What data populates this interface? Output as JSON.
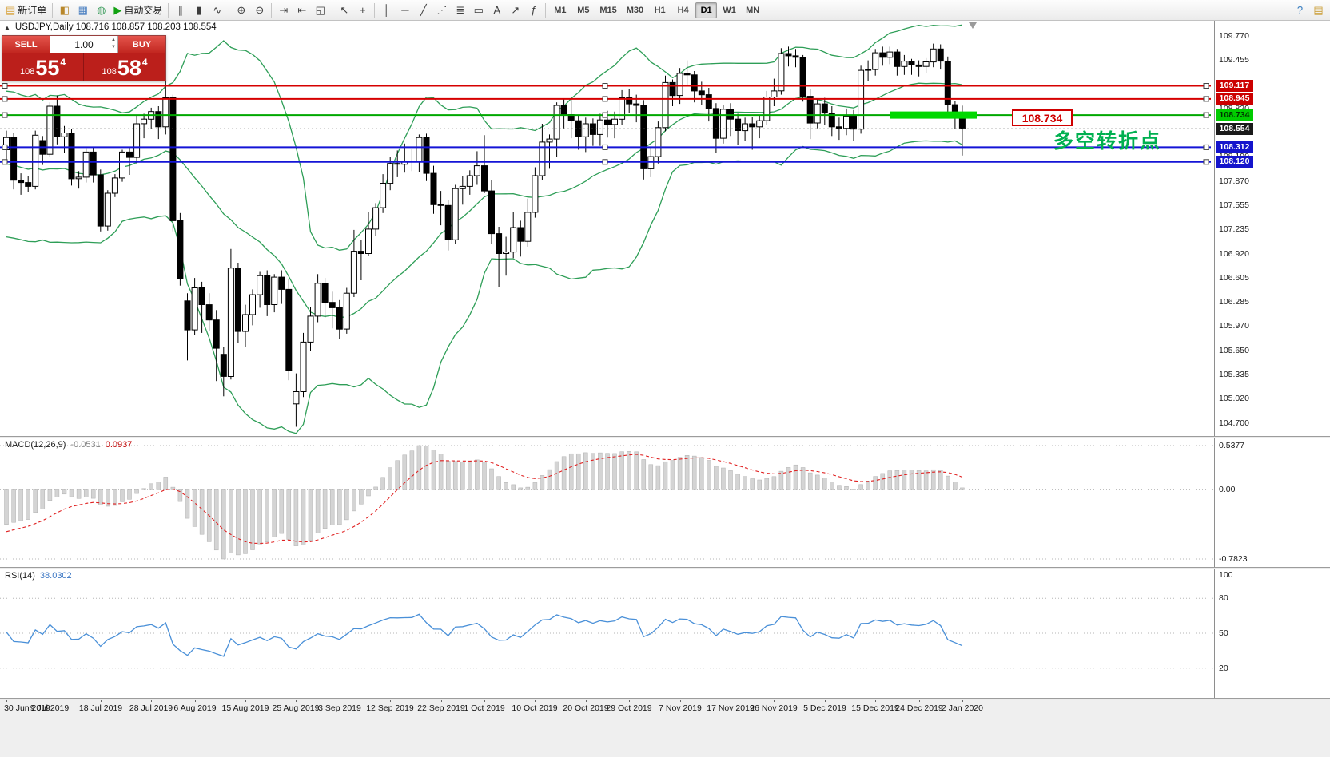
{
  "toolbar": {
    "active_timeframe": "D1",
    "items": [
      {
        "type": "btn",
        "name": "new-order",
        "label": "新订单",
        "glyph": "▤",
        "glyph_color": "#d8a23a"
      },
      {
        "type": "sep"
      },
      {
        "type": "btn",
        "name": "charts",
        "glyph": "◧",
        "glyph_color": "#b8872b"
      },
      {
        "type": "btn",
        "name": "market-watch",
        "glyph": "▦",
        "glyph_color": "#4a7fc1"
      },
      {
        "type": "btn",
        "name": "navigator",
        "glyph": "◍",
        "gly ph_color": "#3f9e5f",
        "glyph_color": "#3f9e5f"
      },
      {
        "type": "btn",
        "name": "autotrading",
        "label": "自动交易",
        "glyph": "▶",
        "glyph_color": "#12a112"
      },
      {
        "type": "sep"
      },
      {
        "type": "btn",
        "name": "bar-chart-mode",
        "glyph": "∥"
      },
      {
        "type": "btn",
        "name": "candlestick-mode",
        "glyph": "▮"
      },
      {
        "type": "btn",
        "name": "line-chart-mode",
        "glyph": "∿"
      },
      {
        "type": "sep"
      },
      {
        "type": "btn",
        "name": "zoom-in",
        "glyph": "⊕"
      },
      {
        "type": "btn",
        "name": "zoom-out",
        "glyph": "⊖"
      },
      {
        "type": "sep"
      },
      {
        "type": "btn",
        "name": "auto-scroll",
        "glyph": "⇥"
      },
      {
        "type": "btn",
        "name": "chart-shift",
        "glyph": "⇤"
      },
      {
        "type": "btn",
        "name": "tile-windows",
        "glyph": "◱"
      },
      {
        "type": "sep"
      },
      {
        "type": "btn",
        "name": "cursor",
        "glyph": "↖"
      },
      {
        "type": "btn",
        "name": "crosshair",
        "glyph": "+"
      },
      {
        "type": "sep"
      },
      {
        "type": "btn",
        "name": "vertical-line",
        "glyph": "│"
      },
      {
        "type": "btn",
        "name": "horizontal-line",
        "glyph": "─"
      },
      {
        "type": "btn",
        "name": "trendline",
        "glyph": "╱"
      },
      {
        "type": "btn",
        "name": "equidistant-channel",
        "glyph": "⋰"
      },
      {
        "type": "btn",
        "name": "fibonacci",
        "glyph": "≣"
      },
      {
        "type": "btn",
        "name": "shapes",
        "glyph": "▭"
      },
      {
        "type": "btn",
        "name": "text-label",
        "glyph": "A"
      },
      {
        "type": "btn",
        "name": "arrows",
        "glyph": "↗"
      },
      {
        "type": "btn",
        "name": "indicators",
        "glyph": "ƒ"
      },
      {
        "type": "sep"
      },
      {
        "type": "tf",
        "label": "M1"
      },
      {
        "type": "tf",
        "label": "M5"
      },
      {
        "type": "tf",
        "label": "M15"
      },
      {
        "type": "tf",
        "label": "M30"
      },
      {
        "type": "tf",
        "label": "H1"
      },
      {
        "type": "tf",
        "label": "H4"
      },
      {
        "type": "tf",
        "label": "D1"
      },
      {
        "type": "tf",
        "label": "W1"
      },
      {
        "type": "tf",
        "label": "MN"
      },
      {
        "type": "spacer"
      },
      {
        "type": "btn",
        "name": "help",
        "glyph": "?",
        "glyph_color": "#3a7fc1"
      },
      {
        "type": "btn",
        "name": "panels",
        "glyph": "▤",
        "glyph_color": "#c99a2e"
      }
    ]
  },
  "symbol_header": {
    "collapse": "▲",
    "text": "USDJPY,Daily 108.716 108.857 108.203 108.554"
  },
  "trade_panel": {
    "sell": "SELL",
    "buy": "BUY",
    "volume": "1.00",
    "bid": {
      "prefix": "108",
      "big": "55",
      "sup": "4"
    },
    "ask": {
      "prefix": "108",
      "big": "58",
      "sup": "4"
    }
  },
  "macd": {
    "name": "MACD(12,26,9)",
    "value1": "-0.0531",
    "value2": "0.0937",
    "scale": [
      "0.5377",
      "0.00",
      "-0.7823"
    ]
  },
  "rsi": {
    "name": "RSI(14)",
    "value": "38.0302",
    "scale": [
      "100",
      "80",
      "50",
      "20"
    ]
  },
  "annotations": {
    "price_callout": "108.734",
    "turning_point_note": "多空转折点"
  },
  "chart_data": {
    "type": "candlestick",
    "symbol": "USDJPY",
    "timeframe": "Daily",
    "last_ohlc": {
      "open": 108.716,
      "high": 108.857,
      "low": 108.203,
      "close": 108.554
    },
    "bid_line": 108.554,
    "styles": {
      "bollinger": "#2e9e57",
      "macd_hist": "#d4d4d4",
      "macd_signal": "#e02020",
      "rsi_line": "#4a90d8",
      "bull": "#ffffff",
      "bear": "#000000"
    },
    "hlines": [
      {
        "price": 109.117,
        "color": "#d60000"
      },
      {
        "price": 108.945,
        "color": "#d60000"
      },
      {
        "price": 108.734,
        "color": "#00a800"
      },
      {
        "price": 108.312,
        "color": "#1414d6"
      },
      {
        "price": 108.12,
        "color": "#1414d6"
      }
    ],
    "zone": {
      "start_index": 122,
      "end_index": 134,
      "price": 108.734,
      "color": "#00d800"
    },
    "axis_labels": [
      109.77,
      109.455,
      108.82,
      108.505,
      108.19,
      107.87,
      107.555,
      107.235,
      106.92,
      106.605,
      106.285,
      105.97,
      105.65,
      105.335,
      105.02,
      104.7
    ],
    "axis_boxes": [
      {
        "text": "109.117",
        "price": 109.117,
        "bg": "#cc0000",
        "fg": "#ffffff"
      },
      {
        "text": "108.945",
        "price": 108.945,
        "bg": "#cc0000",
        "fg": "#ffffff"
      },
      {
        "text": "108.734",
        "price": 108.734,
        "bg": "#00cc00",
        "fg": "#003300"
      },
      {
        "text": "108.554",
        "price": 108.554,
        "bg": "#1a1a1a",
        "fg": "#ffffff"
      },
      {
        "text": "108.312",
        "price": 108.312,
        "bg": "#1414cc",
        "fg": "#ffffff"
      },
      {
        "text": "108.120",
        "price": 108.12,
        "bg": "#1414cc",
        "fg": "#ffffff"
      }
    ],
    "date_labels": [
      [
        0,
        "30 Jun 2019"
      ],
      [
        6,
        "9 Jul 2019"
      ],
      [
        13,
        "18 Jul 2019"
      ],
      [
        20,
        "28 Jul 2019"
      ],
      [
        26,
        "6 Aug 2019"
      ],
      [
        33,
        "15 Aug 2019"
      ],
      [
        40,
        "25 Aug 2019"
      ],
      [
        46,
        "3 Sep 2019"
      ],
      [
        53,
        "12 Sep 2019"
      ],
      [
        60,
        "22 Sep 2019"
      ],
      [
        66,
        "1 Oct 2019"
      ],
      [
        73,
        "10 Oct 2019"
      ],
      [
        80,
        "20 Oct 2019"
      ],
      [
        86,
        "29 Oct 2019"
      ],
      [
        93,
        "7 Nov 2019"
      ],
      [
        100,
        "17 Nov 2019"
      ],
      [
        106,
        "26 Nov 2019"
      ],
      [
        113,
        "5 Dec 2019"
      ],
      [
        120,
        "15 Dec 2019"
      ],
      [
        126,
        "24 Dec 2019"
      ],
      [
        132,
        "2 Jan 2020"
      ]
    ],
    "prehistory_closes": [
      109.95,
      110.05,
      109.85,
      109.6,
      109.45,
      109.55,
      109.35,
      109.6,
      109.7,
      109.5,
      109.3,
      109.0,
      108.7,
      108.4,
      108.29,
      108.07,
      108.15,
      108.44,
      108.29,
      108.19,
      108.72,
      108.53,
      108.5,
      108.37,
      108.56,
      108.54,
      108.45,
      108.11,
      107.3,
      107.32,
      107.32,
      107.19,
      107.79,
      107.79,
      107.85
    ],
    "candles": [
      [
        108.28,
        108.53,
        108.1,
        108.44
      ],
      [
        108.44,
        108.5,
        107.76,
        107.88
      ],
      [
        107.88,
        107.97,
        107.69,
        107.85
      ],
      [
        107.85,
        107.94,
        107.72,
        107.8
      ],
      [
        107.8,
        108.53,
        107.76,
        108.47
      ],
      [
        108.4,
        108.46,
        108.08,
        108.22
      ],
      [
        108.22,
        108.9,
        108.18,
        108.85
      ],
      [
        108.85,
        108.99,
        108.35,
        108.45
      ],
      [
        108.45,
        108.59,
        108.24,
        108.5
      ],
      [
        108.5,
        108.55,
        107.81,
        107.9
      ],
      [
        107.9,
        108.0,
        107.77,
        107.92
      ],
      [
        107.92,
        108.3,
        107.85,
        108.25
      ],
      [
        108.25,
        108.32,
        107.85,
        107.95
      ],
      [
        107.95,
        108.02,
        107.21,
        107.28
      ],
      [
        107.28,
        107.75,
        107.22,
        107.71
      ],
      [
        107.71,
        107.96,
        107.66,
        107.91
      ],
      [
        107.91,
        108.28,
        107.86,
        108.25
      ],
      [
        108.25,
        108.32,
        107.95,
        108.18
      ],
      [
        108.18,
        108.73,
        108.1,
        108.62
      ],
      [
        108.62,
        108.75,
        108.43,
        108.68
      ],
      [
        108.68,
        108.83,
        108.55,
        108.78
      ],
      [
        108.78,
        108.85,
        108.42,
        108.58
      ],
      [
        108.58,
        109.31,
        108.48,
        108.96
      ],
      [
        108.96,
        109.0,
        107.21,
        107.35
      ],
      [
        107.35,
        107.45,
        106.5,
        106.59
      ],
      [
        106.3,
        106.4,
        105.52,
        105.92
      ],
      [
        105.92,
        106.6,
        105.85,
        106.47
      ],
      [
        106.47,
        106.55,
        105.88,
        106.25
      ],
      [
        106.25,
        106.4,
        105.91,
        106.05
      ],
      [
        106.05,
        106.18,
        105.25,
        105.68
      ],
      [
        105.6,
        105.7,
        105.05,
        105.31
      ],
      [
        105.31,
        106.98,
        105.27,
        106.73
      ],
      [
        106.73,
        106.8,
        105.75,
        105.9
      ],
      [
        105.9,
        106.25,
        105.7,
        106.12
      ],
      [
        106.12,
        106.45,
        105.98,
        106.38
      ],
      [
        106.38,
        106.68,
        106.21,
        106.63
      ],
      [
        106.63,
        106.7,
        106.1,
        106.25
      ],
      [
        106.25,
        106.65,
        106.15,
        106.61
      ],
      [
        106.61,
        106.7,
        106.26,
        106.45
      ],
      [
        106.45,
        106.58,
        105.26,
        105.39
      ],
      [
        104.95,
        105.35,
        104.65,
        105.11
      ],
      [
        105.11,
        105.88,
        105.04,
        105.76
      ],
      [
        105.76,
        106.22,
        105.64,
        106.1
      ],
      [
        106.1,
        106.65,
        106.02,
        106.53
      ],
      [
        106.53,
        106.6,
        106.08,
        106.28
      ],
      [
        106.28,
        106.42,
        105.94,
        106.21
      ],
      [
        106.21,
        106.31,
        105.8,
        105.93
      ],
      [
        105.93,
        106.47,
        105.87,
        106.4
      ],
      [
        106.4,
        107.23,
        106.35,
        106.95
      ],
      [
        106.95,
        107.1,
        106.57,
        106.92
      ],
      [
        106.92,
        107.46,
        106.89,
        107.24
      ],
      [
        107.24,
        107.58,
        107.15,
        107.52
      ],
      [
        107.52,
        107.96,
        107.45,
        107.84
      ],
      [
        107.84,
        108.18,
        107.75,
        108.1
      ],
      [
        108.1,
        108.27,
        107.92,
        108.09
      ],
      [
        108.09,
        108.36,
        107.98,
        108.12
      ],
      [
        108.12,
        108.29,
        108.0,
        108.13
      ],
      [
        108.13,
        108.48,
        107.99,
        108.44
      ],
      [
        108.44,
        108.49,
        107.87,
        107.97
      ],
      [
        107.97,
        108.07,
        107.44,
        107.56
      ],
      [
        107.56,
        107.74,
        107.29,
        107.55
      ],
      [
        107.55,
        107.62,
        106.96,
        107.1
      ],
      [
        107.1,
        107.82,
        107.05,
        107.77
      ],
      [
        107.77,
        107.93,
        107.56,
        107.8
      ],
      [
        107.8,
        108.01,
        107.69,
        107.94
      ],
      [
        107.94,
        108.26,
        107.82,
        108.07
      ],
      [
        108.07,
        108.47,
        107.71,
        107.74
      ],
      [
        107.74,
        107.88,
        107.05,
        107.18
      ],
      [
        107.18,
        107.27,
        106.48,
        106.92
      ],
      [
        106.92,
        107.14,
        106.63,
        106.94
      ],
      [
        106.94,
        107.46,
        106.86,
        107.26
      ],
      [
        107.26,
        107.35,
        106.88,
        107.08
      ],
      [
        107.08,
        107.64,
        107.01,
        107.46
      ],
      [
        107.46,
        108.05,
        107.39,
        107.94
      ],
      [
        107.94,
        108.62,
        107.88,
        108.38
      ],
      [
        108.38,
        108.48,
        108.03,
        108.42
      ],
      [
        108.42,
        108.9,
        108.19,
        108.86
      ],
      [
        108.86,
        108.94,
        108.56,
        108.74
      ],
      [
        108.74,
        108.94,
        108.43,
        108.66
      ],
      [
        108.66,
        108.74,
        108.28,
        108.45
      ],
      [
        108.45,
        108.7,
        108.25,
        108.62
      ],
      [
        108.62,
        108.69,
        108.33,
        108.48
      ],
      [
        108.48,
        108.75,
        108.33,
        108.67
      ],
      [
        108.67,
        108.79,
        108.44,
        108.61
      ],
      [
        108.61,
        108.78,
        108.43,
        108.68
      ],
      [
        108.68,
        109.06,
        108.6,
        108.96
      ],
      [
        108.96,
        109.08,
        108.76,
        108.88
      ],
      [
        108.88,
        109.0,
        108.64,
        108.86
      ],
      [
        108.86,
        108.93,
        107.89,
        108.03
      ],
      [
        108.03,
        108.31,
        107.92,
        108.19
      ],
      [
        108.19,
        108.65,
        108.1,
        108.57
      ],
      [
        108.57,
        109.25,
        108.52,
        109.16
      ],
      [
        109.16,
        109.2,
        108.85,
        108.99
      ],
      [
        108.99,
        109.35,
        108.88,
        109.28
      ],
      [
        109.28,
        109.45,
        109.11,
        109.26
      ],
      [
        109.26,
        109.31,
        108.9,
        109.05
      ],
      [
        109.05,
        109.17,
        108.87,
        109.0
      ],
      [
        109.0,
        109.09,
        108.65,
        108.82
      ],
      [
        108.82,
        108.89,
        108.24,
        108.43
      ],
      [
        108.43,
        108.87,
        108.36,
        108.81
      ],
      [
        108.81,
        108.89,
        108.46,
        108.68
      ],
      [
        108.68,
        108.75,
        108.34,
        108.53
      ],
      [
        108.53,
        108.7,
        108.4,
        108.62
      ],
      [
        108.62,
        108.71,
        108.28,
        108.58
      ],
      [
        108.58,
        108.73,
        108.43,
        108.66
      ],
      [
        108.66,
        109.05,
        108.6,
        108.97
      ],
      [
        108.97,
        109.21,
        108.85,
        109.05
      ],
      [
        109.05,
        109.61,
        109.0,
        109.54
      ],
      [
        109.54,
        109.63,
        109.37,
        109.51
      ],
      [
        109.51,
        109.6,
        109.36,
        109.49
      ],
      [
        109.49,
        109.52,
        108.91,
        108.98
      ],
      [
        108.98,
        109.08,
        108.42,
        108.63
      ],
      [
        108.63,
        108.94,
        108.56,
        108.88
      ],
      [
        108.88,
        108.96,
        108.6,
        108.76
      ],
      [
        108.76,
        108.85,
        108.46,
        108.58
      ],
      [
        108.58,
        108.7,
        108.41,
        108.56
      ],
      [
        108.56,
        108.82,
        108.47,
        108.72
      ],
      [
        108.72,
        108.8,
        108.4,
        108.55
      ],
      [
        108.55,
        109.38,
        108.49,
        109.32
      ],
      [
        109.32,
        109.45,
        109.18,
        109.33
      ],
      [
        109.33,
        109.6,
        109.25,
        109.55
      ],
      [
        109.55,
        109.63,
        109.38,
        109.49
      ],
      [
        109.49,
        109.63,
        109.4,
        109.56
      ],
      [
        109.56,
        109.6,
        109.25,
        109.37
      ],
      [
        109.37,
        109.52,
        109.26,
        109.44
      ],
      [
        109.44,
        109.47,
        109.26,
        109.39
      ],
      [
        109.39,
        109.45,
        109.24,
        109.37
      ],
      [
        109.37,
        109.48,
        109.28,
        109.43
      ],
      [
        109.43,
        109.67,
        109.36,
        109.6
      ],
      [
        109.6,
        109.66,
        109.33,
        109.44
      ],
      [
        109.44,
        109.5,
        108.72,
        108.87
      ],
      [
        108.87,
        108.92,
        108.55,
        108.72
      ],
      [
        108.716,
        108.857,
        108.203,
        108.554
      ]
    ]
  }
}
